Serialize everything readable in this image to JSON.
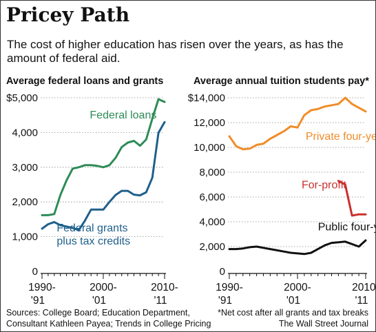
{
  "header": {
    "title": "Pricey Path",
    "subtitle": "The cost of higher education has risen over the years, as has the amount of federal aid."
  },
  "footer": {
    "sources": "Sources: College Board; Education Department, Consultant Kathleen Payea; Trends in College Pricing",
    "note": "*Net cost after all grants and tax breaks",
    "credit": "The Wall Street Journal"
  },
  "colors": {
    "loans": "#2e8b57",
    "grants": "#1f5f8b",
    "private": "#f08c28",
    "for_profit": "#c8312e",
    "public": "#111111"
  },
  "chart_data": [
    {
      "type": "line",
      "title": "Average federal loans and grants",
      "ylim": [
        0,
        5000
      ],
      "yticks": [
        0,
        1000,
        2000,
        3000,
        4000,
        5000
      ],
      "ytick_labels": [
        "0",
        "1,000",
        "2,000",
        "3,000",
        "4,000",
        "$5,000"
      ],
      "xlim": [
        1990,
        2010
      ],
      "xtick_labels": [
        {
          "x": 1990,
          "lines": [
            "1990-",
            "'91"
          ]
        },
        {
          "x": 2000,
          "lines": [
            "2000-",
            "'01"
          ]
        },
        {
          "x": 2010,
          "lines": [
            "2010-",
            "'11"
          ]
        }
      ],
      "series": [
        {
          "name": "Federal loans",
          "color": "#2e8b57",
          "x": [
            1990,
            1991,
            1992,
            1993,
            1994,
            1995,
            1996,
            1997,
            1998,
            1999,
            2000,
            2001,
            2002,
            2003,
            2004,
            2005,
            2006,
            2007,
            2008,
            2009,
            2010
          ],
          "values": [
            1620,
            1620,
            1650,
            2200,
            2620,
            2960,
            3000,
            3060,
            3060,
            3040,
            3000,
            3060,
            3270,
            3580,
            3710,
            3760,
            3620,
            3800,
            4400,
            4960,
            4880
          ]
        },
        {
          "name": "Federal grants plus tax credits",
          "color": "#1f5f8b",
          "x": [
            1990,
            1991,
            1992,
            1993,
            1994,
            1995,
            1996,
            1997,
            1998,
            1999,
            2000,
            2001,
            2002,
            2003,
            2004,
            2005,
            2006,
            2007,
            2008,
            2009,
            2010
          ],
          "values": [
            1230,
            1360,
            1420,
            1330,
            1290,
            1250,
            1190,
            1460,
            1780,
            1780,
            1780,
            2000,
            2200,
            2320,
            2320,
            2210,
            2190,
            2280,
            2700,
            3990,
            4300
          ]
        }
      ],
      "annotations": [
        {
          "lines": [
            "Federal loans"
          ],
          "color": "#2e8b57",
          "x": 1997.8,
          "y": 4400
        },
        {
          "lines": [
            "Federal grants",
            "plus tax credits"
          ],
          "color": "#1f5f8b",
          "x": 1992.4,
          "y": 1150
        }
      ]
    },
    {
      "type": "line",
      "title": "Average annual tuition students pay*",
      "ylim": [
        0,
        14000
      ],
      "yticks": [
        0,
        2000,
        4000,
        6000,
        8000,
        10000,
        12000,
        14000
      ],
      "ytick_labels": [
        "0",
        "2,000",
        "4,000",
        "6,000",
        "8,000",
        "10,000",
        "12,000",
        "$14,000"
      ],
      "xlim": [
        1990,
        2010
      ],
      "xtick_labels": [
        {
          "x": 1990,
          "lines": [
            "1990-",
            "'91"
          ]
        },
        {
          "x": 2000,
          "lines": [
            "2000-",
            "'01"
          ]
        },
        {
          "x": 2010,
          "lines": [
            "2010-",
            "'11"
          ]
        }
      ],
      "series": [
        {
          "name": "Private four-year",
          "color": "#f08c28",
          "x": [
            1990,
            1991,
            1992,
            1993,
            1994,
            1995,
            1996,
            1997,
            1998,
            1999,
            2000,
            2001,
            2002,
            2003,
            2004,
            2005,
            2006,
            2007,
            2008,
            2009,
            2010
          ],
          "values": [
            10900,
            10100,
            9850,
            9900,
            10200,
            10300,
            10700,
            11000,
            11300,
            11700,
            11600,
            12600,
            13000,
            13100,
            13300,
            13400,
            13500,
            14000,
            13500,
            13200,
            12900
          ]
        },
        {
          "name": "For-profit",
          "color": "#c8312e",
          "x": [
            2006,
            2007,
            2008,
            2009,
            2010
          ],
          "values": [
            7300,
            7000,
            4500,
            4600,
            4600
          ]
        },
        {
          "name": "Public four-year",
          "color": "#111111",
          "x": [
            1990,
            1991,
            1992,
            1993,
            1994,
            1995,
            1996,
            1997,
            1998,
            1999,
            2000,
            2001,
            2002,
            2003,
            2004,
            2005,
            2006,
            2007,
            2008,
            2009,
            2010
          ],
          "values": [
            1800,
            1800,
            1850,
            1950,
            2000,
            1900,
            1800,
            1700,
            1600,
            1500,
            1450,
            1400,
            1500,
            1800,
            2100,
            2300,
            2350,
            2400,
            2200,
            2000,
            2500
          ]
        }
      ],
      "annotations": [
        {
          "lines": [
            "Private four-year"
          ],
          "color": "#f08c28",
          "x": 2001.2,
          "y": 10600
        },
        {
          "lines": [
            "For-profit"
          ],
          "color": "#c8312e",
          "x": 2000.6,
          "y": 6700
        },
        {
          "lines": [
            "Public four-year"
          ],
          "color": "#111111",
          "x": 2003.0,
          "y": 3300
        }
      ]
    }
  ]
}
